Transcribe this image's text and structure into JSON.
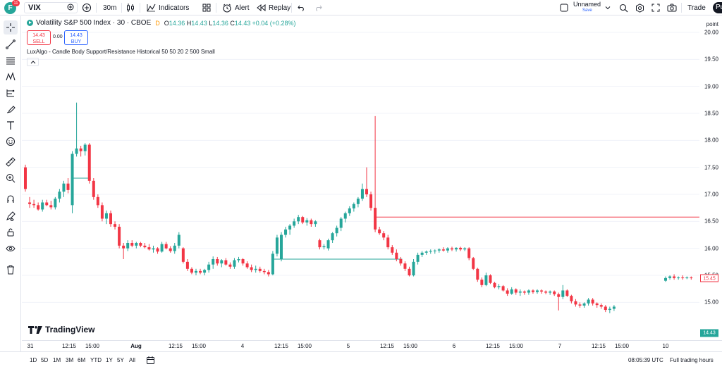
{
  "topbar": {
    "avatar_letter": "F",
    "notification_count": "11",
    "symbol": "VIX",
    "interval": "30m",
    "indicators_label": "Indicators",
    "alert_label": "Alert",
    "replay_label": "Replay",
    "layout_name": "Unnamed",
    "layout_save": "Save",
    "trade_label": "Trade",
    "publish_label": "Pu"
  },
  "legend": {
    "title": "Volatility S&P 500 Index · 30 · CBOE",
    "delay_flag": "D",
    "o_label": "O",
    "o": "14.36",
    "h_label": "H",
    "h": "14.43",
    "l_label": "L",
    "l": "14.36",
    "c_label": "C",
    "c": "14.43",
    "change": "+0.04 (+0.28%)",
    "sell_price": "14.43",
    "sell_label": "SELL",
    "spread": "0.00",
    "buy_price": "14.43",
    "buy_label": "BUY",
    "indicator": "LuxAlgo - Candle Body Support/Resistance Historical 50 50 20 2 500 Small"
  },
  "price_scale": {
    "unit": "point",
    "labels": [
      "20.00",
      "19.50",
      "19.00",
      "18.50",
      "18.00",
      "17.50",
      "17.00",
      "16.50",
      "16.00",
      "15.50",
      "15.00"
    ],
    "resistance_tag": "15.45",
    "last_price_tag": "14.43"
  },
  "time_axis": [
    "31",
    "12:15",
    "15:00",
    "Aug",
    "12:15",
    "15:00",
    "4",
    "12:15",
    "15:00",
    "5",
    "12:15",
    "15:00",
    "6",
    "12:15",
    "15:00",
    "7",
    "12:15",
    "15:00",
    "10"
  ],
  "watermark": "TradingView",
  "bottombar": {
    "ranges": [
      "1D",
      "5D",
      "1M",
      "3M",
      "6M",
      "YTD",
      "1Y",
      "5Y",
      "All"
    ],
    "clock": "08:05:39 UTC",
    "session": "Full trading hours"
  },
  "colors": {
    "up": "#26a69a",
    "down": "#f23645",
    "support": "#26a69a",
    "resistance": "#f23645"
  },
  "chart_data": {
    "type": "candlestick",
    "symbol": "VIX",
    "interval": "30",
    "ylim": [
      14.3,
      20.3
    ],
    "candles": [
      {
        "o": 17.5,
        "h": 17.55,
        "l": 17.05,
        "c": 17.1
      },
      {
        "o": 16.85,
        "h": 16.95,
        "l": 16.75,
        "c": 16.82
      },
      {
        "o": 16.82,
        "h": 16.9,
        "l": 16.75,
        "c": 16.8
      },
      {
        "o": 16.8,
        "h": 16.85,
        "l": 16.7,
        "c": 16.72
      },
      {
        "o": 16.72,
        "h": 16.9,
        "l": 16.68,
        "c": 16.85
      },
      {
        "o": 16.85,
        "h": 16.9,
        "l": 16.78,
        "c": 16.8
      },
      {
        "o": 16.8,
        "h": 16.88,
        "l": 16.72,
        "c": 16.76
      },
      {
        "o": 16.76,
        "h": 16.95,
        "l": 16.72,
        "c": 16.92
      },
      {
        "o": 16.92,
        "h": 17.1,
        "l": 16.85,
        "c": 17.05
      },
      {
        "o": 17.05,
        "h": 17.25,
        "l": 16.95,
        "c": 17.2
      },
      {
        "o": 17.2,
        "h": 17.3,
        "l": 17.02,
        "c": 17.08
      },
      {
        "o": 16.8,
        "h": 17.8,
        "l": 16.65,
        "c": 17.75
      },
      {
        "o": 17.75,
        "h": 18.7,
        "l": 17.7,
        "c": 17.85
      },
      {
        "o": 17.85,
        "h": 17.9,
        "l": 17.7,
        "c": 17.8
      },
      {
        "o": 17.8,
        "h": 17.95,
        "l": 17.72,
        "c": 17.92
      },
      {
        "o": 17.92,
        "h": 17.95,
        "l": 17.2,
        "c": 17.25
      },
      {
        "o": 17.25,
        "h": 17.3,
        "l": 16.9,
        "c": 16.95
      },
      {
        "o": 16.95,
        "h": 17.0,
        "l": 16.75,
        "c": 16.8
      },
      {
        "o": 16.8,
        "h": 16.85,
        "l": 16.5,
        "c": 16.55
      },
      {
        "o": 16.55,
        "h": 16.7,
        "l": 16.45,
        "c": 16.65
      },
      {
        "o": 16.65,
        "h": 16.7,
        "l": 16.4,
        "c": 16.45
      },
      {
        "o": 16.45,
        "h": 16.5,
        "l": 16.35,
        "c": 16.4
      },
      {
        "o": 16.4,
        "h": 16.45,
        "l": 16.0,
        "c": 16.05
      },
      {
        "o": 16.05,
        "h": 16.1,
        "l": 15.8,
        "c": 16.0
      },
      {
        "o": 16.0,
        "h": 16.15,
        "l": 15.95,
        "c": 16.1
      },
      {
        "o": 16.1,
        "h": 16.15,
        "l": 16.02,
        "c": 16.05
      },
      {
        "o": 16.05,
        "h": 16.12,
        "l": 16.0,
        "c": 16.1
      },
      {
        "o": 16.1,
        "h": 16.12,
        "l": 16.02,
        "c": 16.05
      },
      {
        "o": 16.05,
        "h": 16.1,
        "l": 16.0,
        "c": 16.02
      },
      {
        "o": 16.02,
        "h": 16.08,
        "l": 15.96,
        "c": 15.98
      },
      {
        "o": 15.98,
        "h": 16.05,
        "l": 15.92,
        "c": 16.0
      },
      {
        "o": 16.0,
        "h": 16.02,
        "l": 15.9,
        "c": 15.94
      },
      {
        "o": 15.94,
        "h": 16.12,
        "l": 15.92,
        "c": 16.08
      },
      {
        "o": 16.08,
        "h": 16.12,
        "l": 15.98,
        "c": 16.0
      },
      {
        "o": 16.0,
        "h": 16.04,
        "l": 15.92,
        "c": 15.95
      },
      {
        "o": 15.95,
        "h": 16.1,
        "l": 15.9,
        "c": 16.05
      },
      {
        "o": 16.05,
        "h": 16.3,
        "l": 16.0,
        "c": 16.25
      },
      {
        "o": 16.0,
        "h": 16.02,
        "l": 15.72,
        "c": 15.75
      },
      {
        "o": 15.75,
        "h": 15.8,
        "l": 15.58,
        "c": 15.62
      },
      {
        "o": 15.62,
        "h": 15.65,
        "l": 15.52,
        "c": 15.55
      },
      {
        "o": 15.55,
        "h": 15.62,
        "l": 15.5,
        "c": 15.58
      },
      {
        "o": 15.58,
        "h": 15.62,
        "l": 15.52,
        "c": 15.55
      },
      {
        "o": 15.55,
        "h": 15.62,
        "l": 15.5,
        "c": 15.6
      },
      {
        "o": 15.6,
        "h": 15.75,
        "l": 15.55,
        "c": 15.7
      },
      {
        "o": 15.7,
        "h": 15.85,
        "l": 15.62,
        "c": 15.8
      },
      {
        "o": 15.8,
        "h": 15.84,
        "l": 15.68,
        "c": 15.72
      },
      {
        "o": 15.72,
        "h": 15.8,
        "l": 15.65,
        "c": 15.78
      },
      {
        "o": 15.78,
        "h": 15.82,
        "l": 15.68,
        "c": 15.7
      },
      {
        "o": 15.7,
        "h": 15.74,
        "l": 15.62,
        "c": 15.66
      },
      {
        "o": 15.66,
        "h": 15.82,
        "l": 15.62,
        "c": 15.78
      },
      {
        "o": 15.78,
        "h": 15.84,
        "l": 15.74,
        "c": 15.8
      },
      {
        "o": 15.8,
        "h": 15.82,
        "l": 15.68,
        "c": 15.72
      },
      {
        "o": 15.72,
        "h": 15.76,
        "l": 15.62,
        "c": 15.65
      },
      {
        "o": 15.65,
        "h": 15.7,
        "l": 15.56,
        "c": 15.6
      },
      {
        "o": 15.6,
        "h": 15.68,
        "l": 15.55,
        "c": 15.62
      },
      {
        "o": 15.62,
        "h": 15.66,
        "l": 15.55,
        "c": 15.58
      },
      {
        "o": 15.58,
        "h": 15.62,
        "l": 15.52,
        "c": 15.56
      },
      {
        "o": 15.56,
        "h": 15.6,
        "l": 15.48,
        "c": 15.52
      },
      {
        "o": 15.52,
        "h": 15.95,
        "l": 15.5,
        "c": 15.9
      },
      {
        "o": 15.9,
        "h": 16.25,
        "l": 15.85,
        "c": 16.2
      },
      {
        "o": 15.8,
        "h": 16.3,
        "l": 15.76,
        "c": 16.25
      },
      {
        "o": 16.25,
        "h": 16.4,
        "l": 16.2,
        "c": 16.35
      },
      {
        "o": 16.35,
        "h": 16.45,
        "l": 16.25,
        "c": 16.42
      },
      {
        "o": 16.42,
        "h": 16.55,
        "l": 16.38,
        "c": 16.5
      },
      {
        "o": 16.5,
        "h": 16.62,
        "l": 16.45,
        "c": 16.58
      },
      {
        "o": 16.58,
        "h": 16.6,
        "l": 16.45,
        "c": 16.48
      },
      {
        "o": 16.48,
        "h": 16.56,
        "l": 16.42,
        "c": 16.52
      },
      {
        "o": 16.52,
        "h": 16.55,
        "l": 16.4,
        "c": 16.45
      },
      {
        "o": 16.45,
        "h": 16.52,
        "l": 16.4,
        "c": 16.5
      },
      {
        "o": 16.15,
        "h": 16.18,
        "l": 15.98,
        "c": 16.02
      },
      {
        "o": 16.02,
        "h": 16.08,
        "l": 15.98,
        "c": 16.04
      },
      {
        "o": 16.0,
        "h": 16.18,
        "l": 15.96,
        "c": 16.15
      },
      {
        "o": 16.15,
        "h": 16.3,
        "l": 16.1,
        "c": 16.28
      },
      {
        "o": 16.28,
        "h": 16.42,
        "l": 16.22,
        "c": 16.38
      },
      {
        "o": 16.38,
        "h": 16.58,
        "l": 16.32,
        "c": 16.55
      },
      {
        "o": 16.55,
        "h": 16.68,
        "l": 16.48,
        "c": 16.65
      },
      {
        "o": 16.65,
        "h": 16.78,
        "l": 16.6,
        "c": 16.74
      },
      {
        "o": 16.74,
        "h": 16.85,
        "l": 16.68,
        "c": 16.82
      },
      {
        "o": 16.82,
        "h": 16.95,
        "l": 16.76,
        "c": 16.92
      },
      {
        "o": 16.92,
        "h": 17.2,
        "l": 16.88,
        "c": 17.1
      },
      {
        "o": 17.1,
        "h": 17.5,
        "l": 16.95,
        "c": 17.0
      },
      {
        "o": 17.0,
        "h": 17.05,
        "l": 16.7,
        "c": 16.75
      },
      {
        "o": 16.75,
        "h": 18.45,
        "l": 16.3,
        "c": 16.35
      },
      {
        "o": 16.35,
        "h": 16.4,
        "l": 16.25,
        "c": 16.28
      },
      {
        "o": 16.28,
        "h": 16.32,
        "l": 16.15,
        "c": 16.2
      },
      {
        "o": 16.2,
        "h": 16.25,
        "l": 15.98,
        "c": 16.02
      },
      {
        "o": 16.02,
        "h": 16.06,
        "l": 15.88,
        "c": 15.92
      },
      {
        "o": 15.92,
        "h": 15.98,
        "l": 15.76,
        "c": 15.8
      },
      {
        "o": 15.8,
        "h": 15.84,
        "l": 15.68,
        "c": 15.72
      },
      {
        "o": 15.72,
        "h": 15.76,
        "l": 15.58,
        "c": 15.62
      },
      {
        "o": 15.62,
        "h": 15.66,
        "l": 15.48,
        "c": 15.5
      },
      {
        "o": 15.5,
        "h": 15.8,
        "l": 15.48,
        "c": 15.75
      },
      {
        "o": 15.75,
        "h": 15.92,
        "l": 15.7,
        "c": 15.88
      },
      {
        "o": 15.88,
        "h": 15.95,
        "l": 15.84,
        "c": 15.92
      },
      {
        "o": 15.92,
        "h": 15.96,
        "l": 15.88,
        "c": 15.94
      },
      {
        "o": 15.94,
        "h": 15.98,
        "l": 15.9,
        "c": 15.95
      },
      {
        "o": 15.95,
        "h": 15.98,
        "l": 15.9,
        "c": 15.96
      },
      {
        "o": 15.96,
        "h": 16.0,
        "l": 15.92,
        "c": 15.98
      },
      {
        "o": 15.98,
        "h": 16.02,
        "l": 15.94,
        "c": 15.96
      },
      {
        "o": 15.96,
        "h": 16.02,
        "l": 15.92,
        "c": 16.0
      },
      {
        "o": 16.0,
        "h": 16.03,
        "l": 15.95,
        "c": 15.98
      },
      {
        "o": 15.98,
        "h": 16.02,
        "l": 15.94,
        "c": 16.01
      },
      {
        "o": 16.01,
        "h": 16.03,
        "l": 15.95,
        "c": 15.98
      },
      {
        "o": 15.98,
        "h": 16.02,
        "l": 15.95,
        "c": 16.0
      },
      {
        "o": 16.0,
        "h": 16.02,
        "l": 15.78,
        "c": 15.82
      },
      {
        "o": 15.82,
        "h": 15.84,
        "l": 15.6,
        "c": 15.62
      },
      {
        "o": 15.62,
        "h": 15.64,
        "l": 15.38,
        "c": 15.42
      },
      {
        "o": 15.42,
        "h": 15.46,
        "l": 15.28,
        "c": 15.32
      },
      {
        "o": 15.32,
        "h": 15.55,
        "l": 15.3,
        "c": 15.5
      },
      {
        "o": 15.5,
        "h": 15.52,
        "l": 15.34,
        "c": 15.36
      },
      {
        "o": 15.36,
        "h": 15.38,
        "l": 15.26,
        "c": 15.28
      },
      {
        "o": 15.28,
        "h": 15.34,
        "l": 15.24,
        "c": 15.3
      },
      {
        "o": 15.3,
        "h": 15.32,
        "l": 15.2,
        "c": 15.22
      },
      {
        "o": 15.22,
        "h": 15.26,
        "l": 15.12,
        "c": 15.16
      },
      {
        "o": 15.16,
        "h": 15.28,
        "l": 15.14,
        "c": 15.24
      },
      {
        "o": 15.24,
        "h": 15.26,
        "l": 15.14,
        "c": 15.18
      },
      {
        "o": 15.18,
        "h": 15.24,
        "l": 15.12,
        "c": 15.2
      },
      {
        "o": 15.2,
        "h": 15.22,
        "l": 15.14,
        "c": 15.18
      },
      {
        "o": 15.18,
        "h": 15.24,
        "l": 15.14,
        "c": 15.22
      },
      {
        "o": 15.22,
        "h": 15.24,
        "l": 15.16,
        "c": 15.19
      },
      {
        "o": 15.19,
        "h": 15.24,
        "l": 15.16,
        "c": 15.22
      },
      {
        "o": 15.22,
        "h": 15.24,
        "l": 15.16,
        "c": 15.2
      },
      {
        "o": 15.2,
        "h": 15.22,
        "l": 15.15,
        "c": 15.18
      },
      {
        "o": 15.18,
        "h": 15.22,
        "l": 15.14,
        "c": 15.2
      },
      {
        "o": 15.2,
        "h": 15.22,
        "l": 15.12,
        "c": 15.15
      },
      {
        "o": 15.15,
        "h": 15.18,
        "l": 14.85,
        "c": 15.1
      },
      {
        "o": 15.1,
        "h": 15.32,
        "l": 15.06,
        "c": 15.22
      },
      {
        "o": 15.22,
        "h": 15.24,
        "l": 15.1,
        "c": 15.12
      },
      {
        "o": 15.12,
        "h": 15.14,
        "l": 14.98,
        "c": 15.02
      },
      {
        "o": 15.02,
        "h": 15.06,
        "l": 14.92,
        "c": 14.96
      },
      {
        "o": 14.96,
        "h": 15.0,
        "l": 14.9,
        "c": 14.94
      },
      {
        "o": 14.94,
        "h": 15.0,
        "l": 14.9,
        "c": 14.98
      },
      {
        "o": 14.98,
        "h": 15.08,
        "l": 14.94,
        "c": 15.05
      },
      {
        "o": 15.05,
        "h": 15.08,
        "l": 14.94,
        "c": 14.98
      },
      {
        "o": 14.98,
        "h": 15.0,
        "l": 14.9,
        "c": 14.95
      },
      {
        "o": 14.95,
        "h": 14.98,
        "l": 14.88,
        "c": 14.92
      },
      {
        "o": 14.92,
        "h": 14.95,
        "l": 14.82,
        "c": 14.86
      },
      {
        "o": 14.86,
        "h": 14.92,
        "l": 14.8,
        "c": 14.88
      },
      {
        "o": 14.88,
        "h": 14.95,
        "l": 14.84,
        "c": 14.92
      }
    ],
    "candles_after_gap": [
      {
        "o": 15.4,
        "h": 15.48,
        "l": 15.38,
        "c": 15.45
      },
      {
        "o": 15.45,
        "h": 15.5,
        "l": 15.42,
        "c": 15.48
      },
      {
        "o": 15.48,
        "h": 15.52,
        "l": 15.42,
        "c": 15.45
      },
      {
        "o": 15.45,
        "h": 15.48,
        "l": 15.42,
        "c": 15.46
      },
      {
        "o": 15.46,
        "h": 15.5,
        "l": 15.42,
        "c": 15.45
      },
      {
        "o": 15.45,
        "h": 15.48,
        "l": 15.43,
        "c": 15.46
      },
      {
        "o": 15.46,
        "h": 15.48,
        "l": 15.42,
        "c": 15.45
      }
    ],
    "levels": [
      {
        "kind": "support",
        "price": 17.3,
        "from_index": 11,
        "to_index": 15
      },
      {
        "kind": "support",
        "price": 15.8,
        "from_index": 58,
        "to_index": 88
      },
      {
        "kind": "resistance",
        "price": 16.58,
        "from_index": 82,
        "to_index": "end"
      }
    ]
  }
}
